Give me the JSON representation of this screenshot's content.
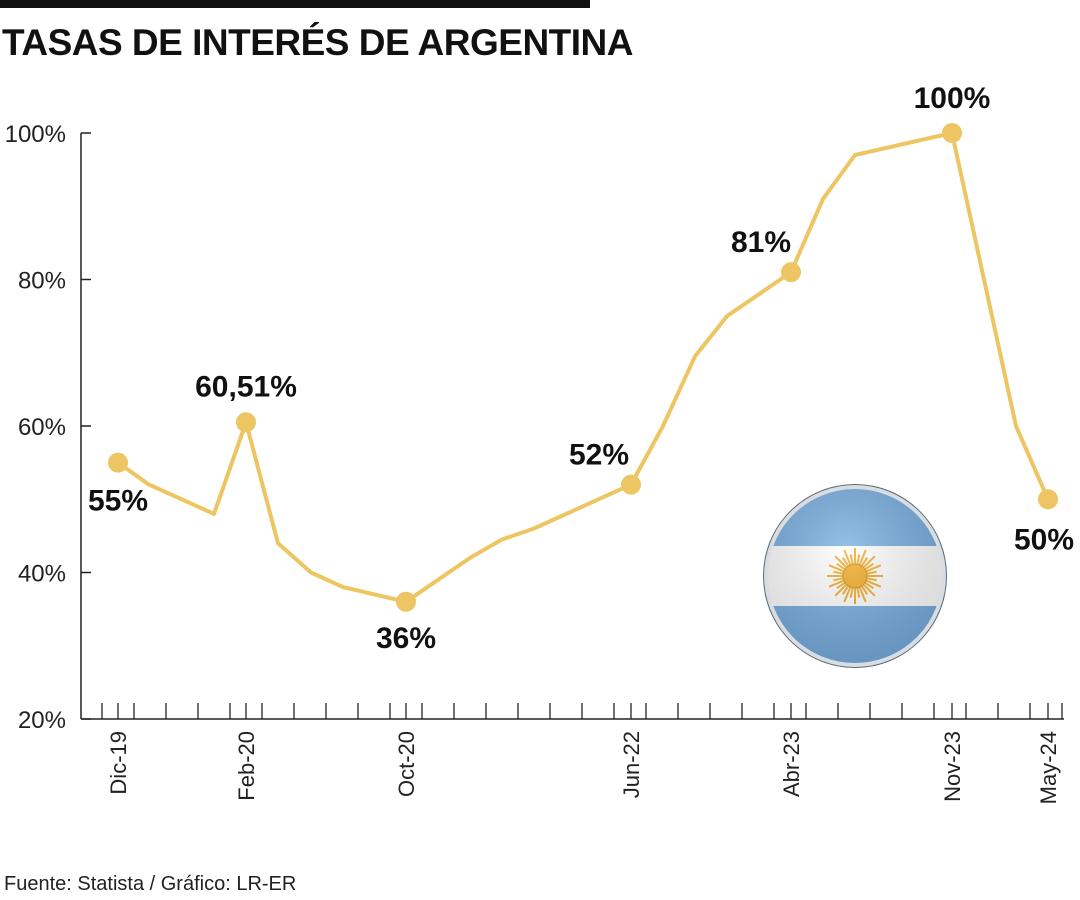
{
  "title": "TASAS DE INTERÉS DE ARGENTINA",
  "source": "Fuente: Statista / Gráfico: LR-ER",
  "colors": {
    "line": "#EDC562",
    "axis": "#222222",
    "flag_blue": "#74ACDF",
    "sun": "#F2A81D"
  },
  "icons": {
    "flag": "argentina-flag-icon"
  },
  "chart_data": {
    "type": "line",
    "title": "TASAS DE INTERÉS DE ARGENTINA",
    "ylim": [
      20,
      100
    ],
    "yticks": [
      "20%",
      "40%",
      "60%",
      "80%",
      "100%"
    ],
    "grid": false,
    "x_labels": [
      "Dic-19",
      "Feb-20",
      "Oct-20",
      "Jun-22",
      "Abr-23",
      "Nov-23",
      "May-24"
    ],
    "series": [
      {
        "values": [
          55,
          52,
          48,
          60.51,
          44,
          40,
          38,
          36,
          39,
          42,
          44.5,
          46,
          52,
          60,
          69.5,
          75,
          81,
          91,
          97,
          100,
          60,
          50
        ]
      }
    ],
    "labeled_points": [
      {
        "index": 0,
        "label": "55%"
      },
      {
        "index": 3,
        "label": "60,51%"
      },
      {
        "index": 7,
        "label": "36%"
      },
      {
        "index": 12,
        "label": "52%"
      },
      {
        "index": 16,
        "label": "81%"
      },
      {
        "index": 19,
        "label": "100%"
      },
      {
        "index": 21,
        "label": "50%"
      }
    ]
  }
}
